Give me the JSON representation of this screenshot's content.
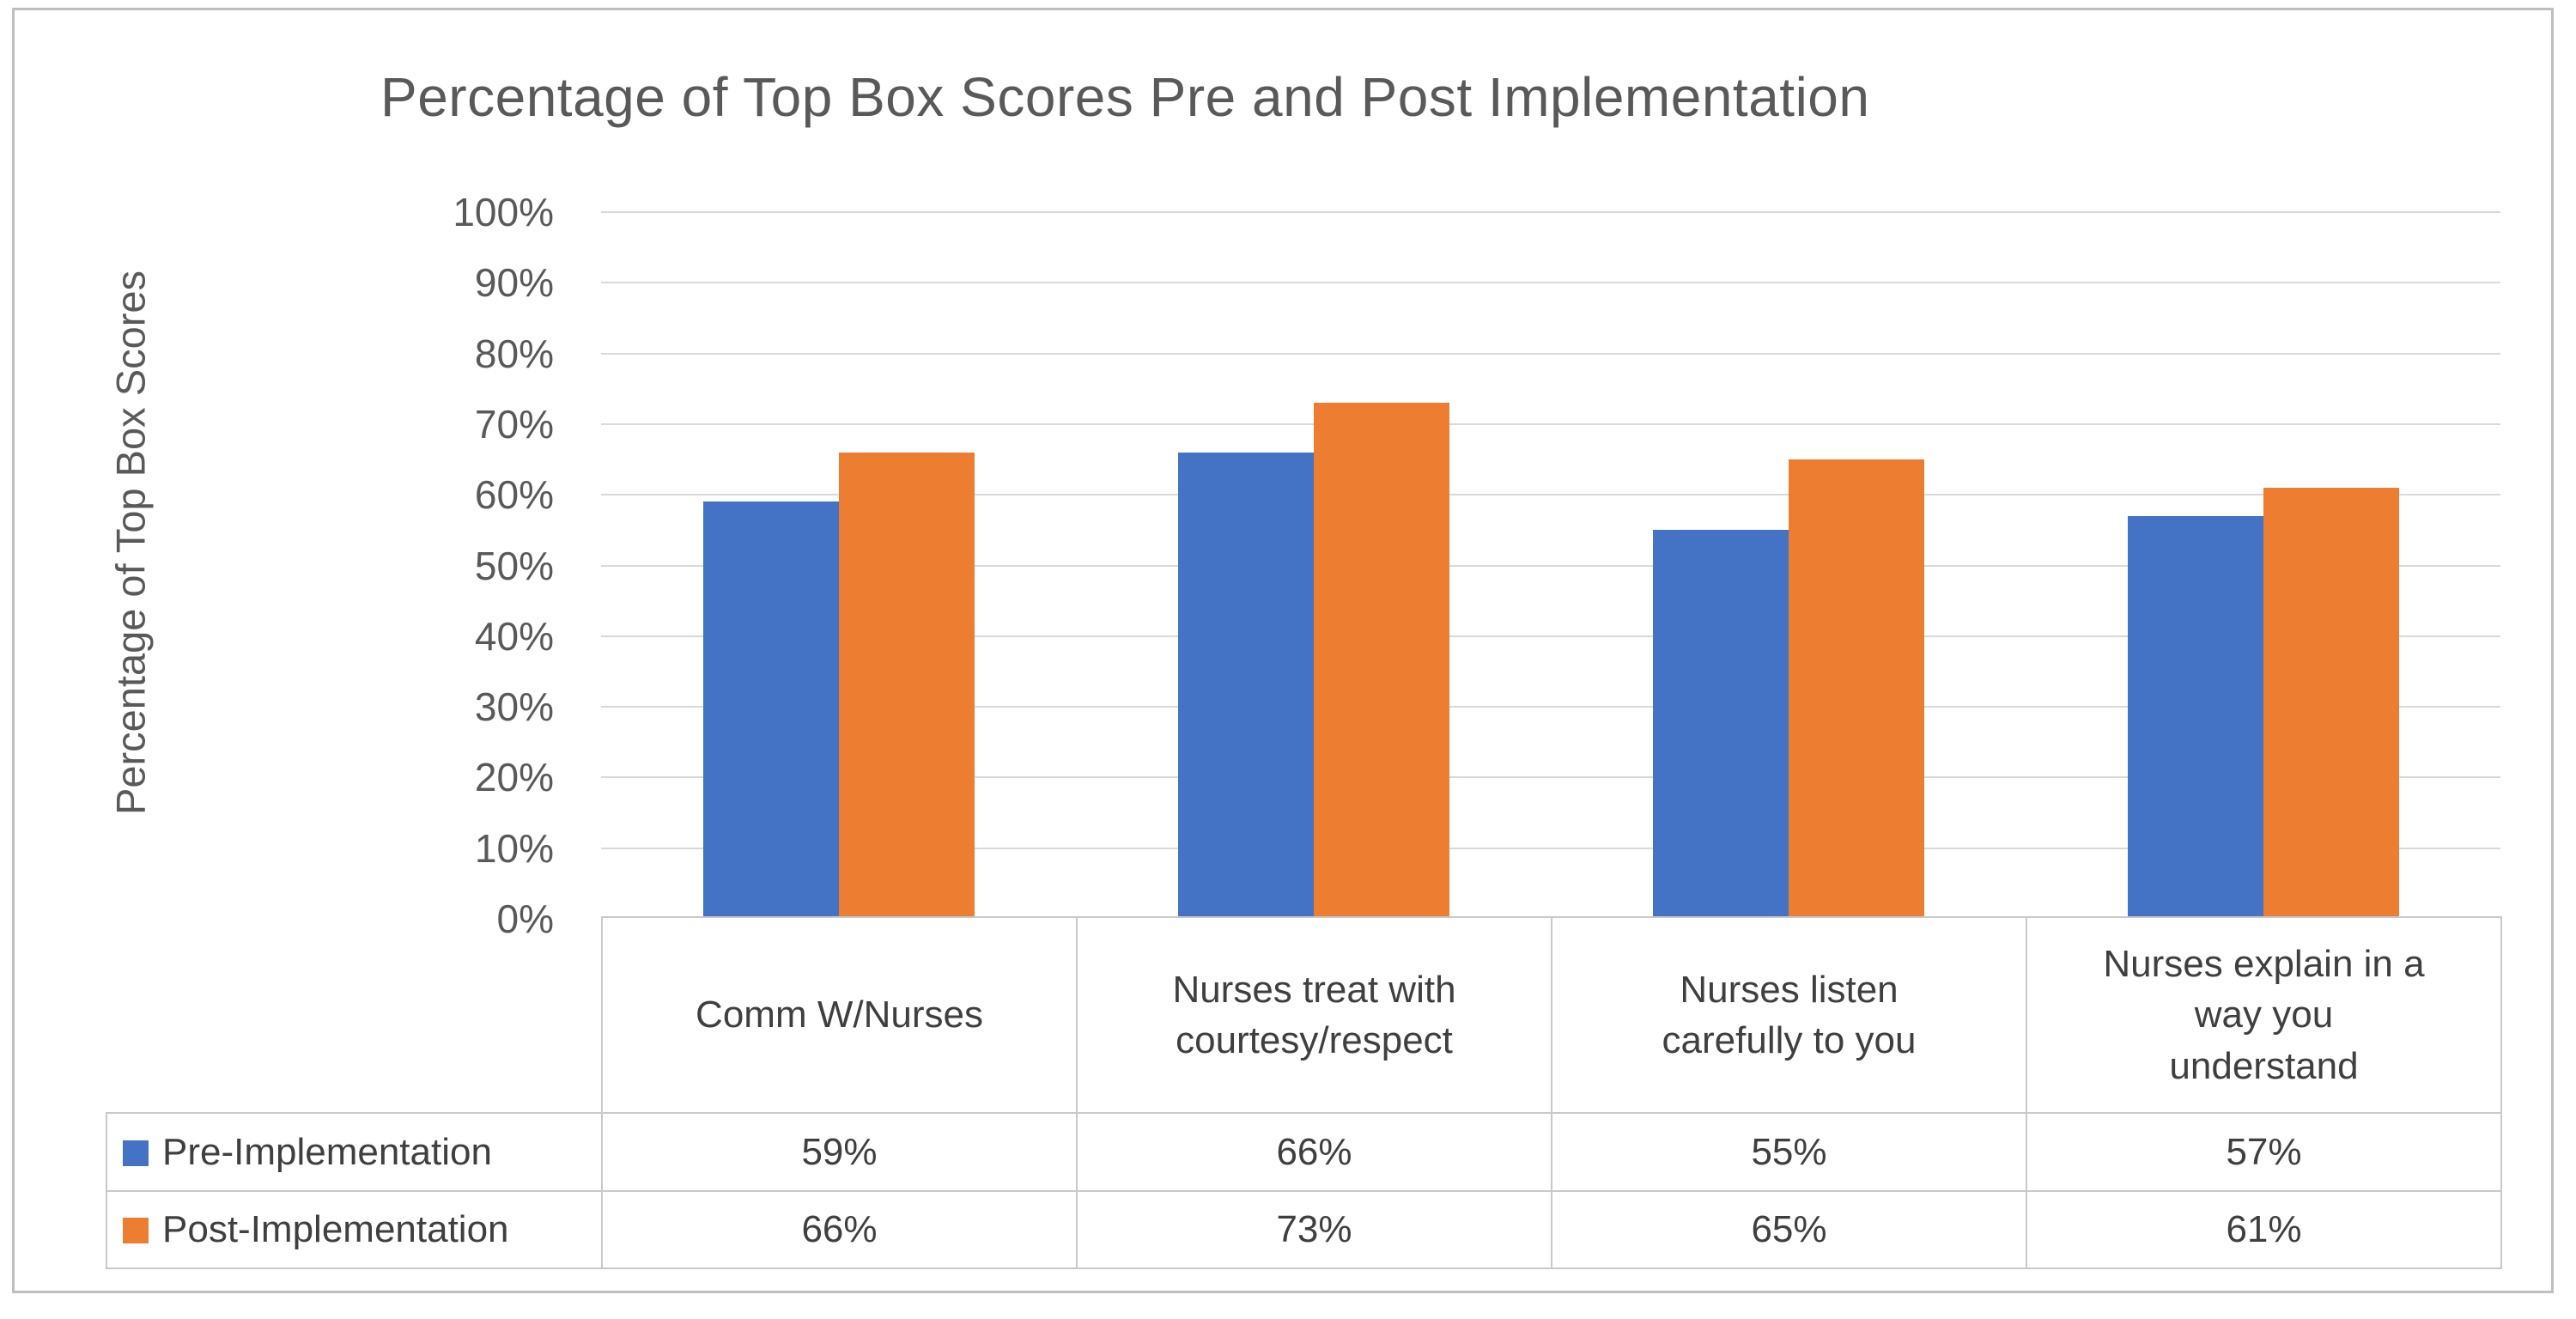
{
  "title": "Percentage of Top Box Scores Pre and Post Implementation",
  "y_axis": {
    "label": "Percentage of Top Box Scores",
    "ticks": [
      "100%",
      "90%",
      "80%",
      "70%",
      "60%",
      "50%",
      "40%",
      "30%",
      "20%",
      "10%",
      "0%"
    ]
  },
  "colors": {
    "pre_series": "#4472C4",
    "post_series": "#ED7D31",
    "gridline": "#D9D9D9",
    "table_border": "#C9C9C9",
    "title_text": "#595959",
    "axis_text": "#595959",
    "table_text": "#3F3F3F",
    "outer_border": "#BFBFBF"
  },
  "chart_data": {
    "type": "bar",
    "title": "Percentage of Top Box Scores Pre and Post Implementation",
    "xlabel": "",
    "ylabel": "Percentage of Top Box Scores",
    "ylim": [
      0,
      100
    ],
    "ytick_step": 10,
    "grid": true,
    "legend_position": "table-left",
    "categories": [
      "Comm W/Nurses",
      "Nurses treat with courtesy/respect",
      "Nurses listen carefully to you",
      "Nurses explain in a way you understand"
    ],
    "categories_display": [
      "Comm W/Nurses",
      "Nurses treat with\ncourtesy/respect",
      "Nurses listen\ncarefully to you",
      "Nurses explain in a\nway you\nunderstand"
    ],
    "series": [
      {
        "name": "Pre-Implementation",
        "color": "#4472C4",
        "values": [
          59,
          66,
          55,
          57
        ],
        "display_values": [
          "59%",
          "66%",
          "55%",
          "57%"
        ]
      },
      {
        "name": "Post-Implementation",
        "color": "#ED7D31",
        "values": [
          66,
          73,
          65,
          61
        ],
        "display_values": [
          "66%",
          "73%",
          "65%",
          "61%"
        ]
      }
    ]
  }
}
